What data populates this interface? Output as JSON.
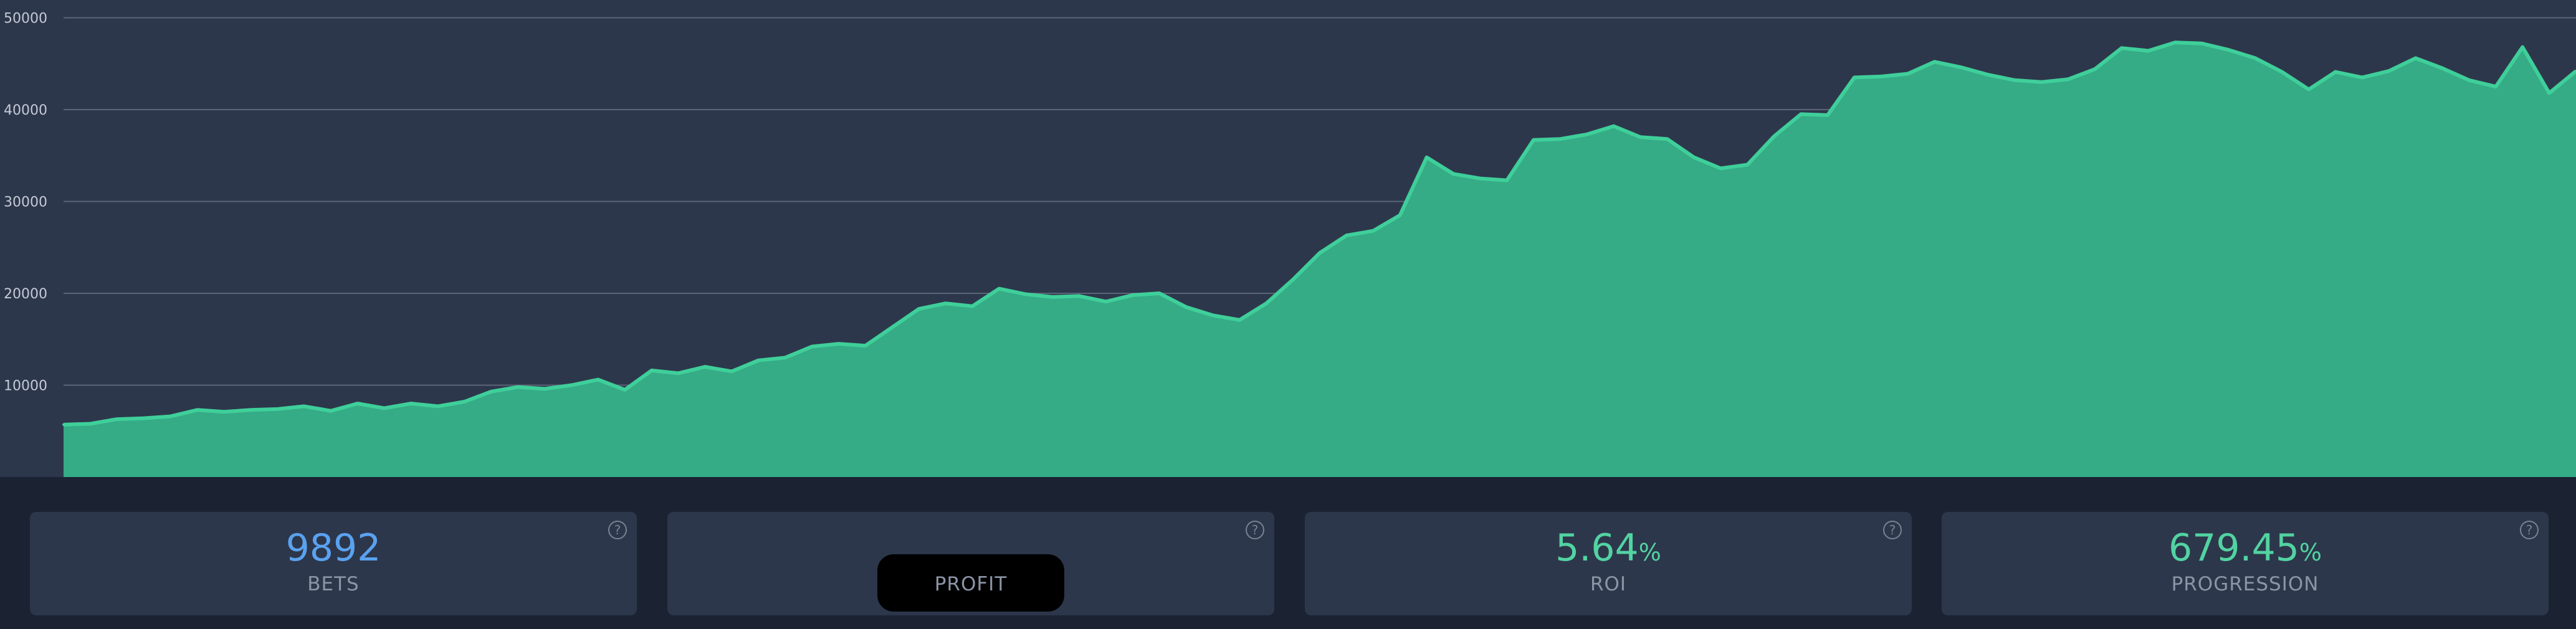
{
  "colors": {
    "chart_background": "#2d374b",
    "page_background": "#1b2333",
    "area_fill": "#35ab86",
    "area_line": "#3fcf9a",
    "gridline": "#5b6577",
    "bets_value_color": "#5aa2f0",
    "positive_value_color": "#52d3a2"
  },
  "chart_data": {
    "type": "area",
    "title": "",
    "xlabel": "",
    "ylabel": "",
    "ylim": [
      0,
      50000
    ],
    "ytick_values": [
      10000,
      20000,
      30000,
      40000,
      50000
    ],
    "ytick_labels": [
      "10000",
      "20000",
      "30000",
      "40000",
      "50000"
    ],
    "grid": true,
    "legend": "none",
    "series": [
      {
        "values": [
          5700,
          5800,
          6300,
          6400,
          6600,
          7300,
          7100,
          7300,
          7400,
          7700,
          7200,
          8000,
          7500,
          8000,
          7700,
          8200,
          9300,
          9800,
          9600,
          10000,
          10600,
          9500,
          11600,
          11300,
          12000,
          11500,
          12700,
          13000,
          14200,
          14500,
          14300,
          16300,
          18300,
          18900,
          18600,
          20500,
          19900,
          19600,
          19700,
          19100,
          19800,
          20000,
          18500,
          17600,
          17100,
          18900,
          21500,
          24400,
          26300,
          26800,
          28500,
          34800,
          33000,
          32500,
          32300,
          36700,
          36800,
          37300,
          38200,
          37000,
          36800,
          34800,
          33600,
          34000,
          37100,
          39500,
          39400,
          43500,
          43600,
          43900,
          45200,
          44600,
          43800,
          43200,
          43000,
          43300,
          44400,
          46700,
          46400,
          47300,
          47200,
          46500,
          45600,
          44100,
          42200,
          44100,
          43500,
          44200,
          45600,
          44500,
          43200,
          42500,
          46800,
          41800,
          44200
        ]
      }
    ]
  },
  "stats": [
    {
      "value": "9892",
      "unit": "",
      "label": "BETS",
      "help": "?"
    },
    {
      "value": "",
      "unit": "",
      "label": "PROFIT",
      "help": "?"
    },
    {
      "value": "5.64",
      "unit": "%",
      "label": "ROI",
      "help": "?"
    },
    {
      "value": "679.45",
      "unit": "%",
      "label": "PROGRESSION",
      "help": "?"
    }
  ]
}
